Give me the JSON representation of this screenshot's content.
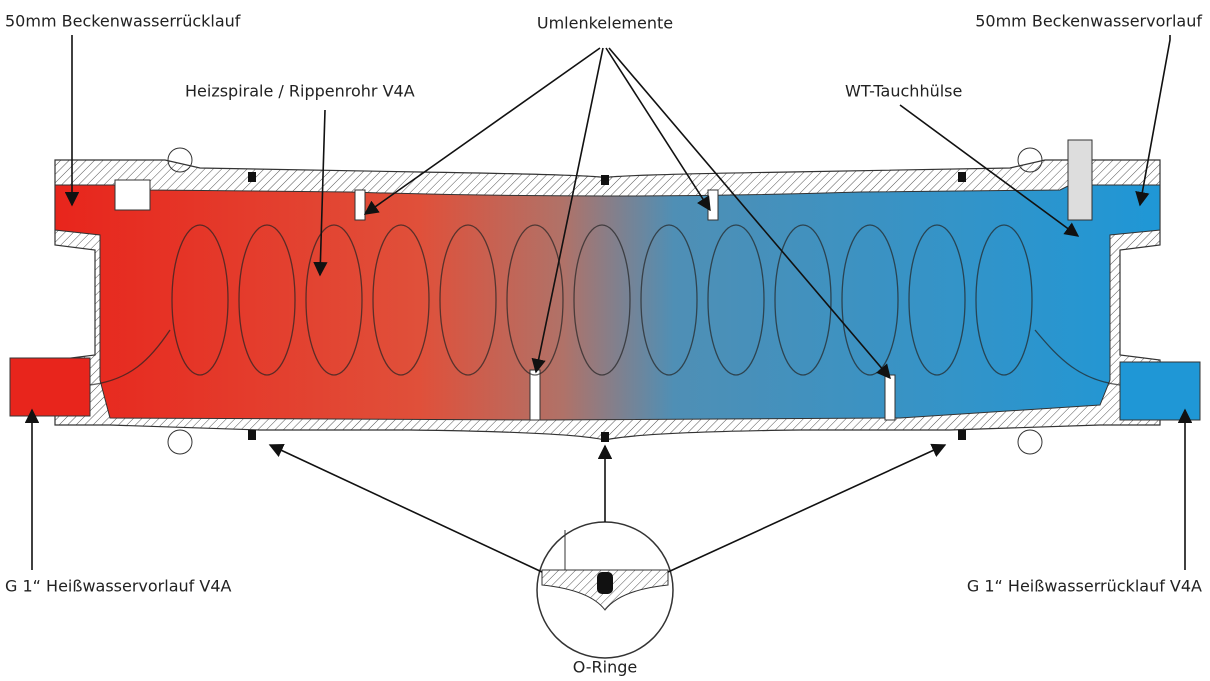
{
  "labels": {
    "return_inlet": "50mm Beckenwasserrücklauf",
    "baffles": "Umlenkelemente",
    "supply_outlet": "50mm Beckenwasservorlauf",
    "heating_coil": "Heizspirale / Rippenrohr V4A",
    "sensor_sleeve": "WT-Tauchhülse",
    "hot_supply": "G 1“ Heißwasservorlauf V4A",
    "hot_return": "G 1“ Heißwasserrücklauf V4A",
    "o_rings": "O-Ringe"
  }
}
